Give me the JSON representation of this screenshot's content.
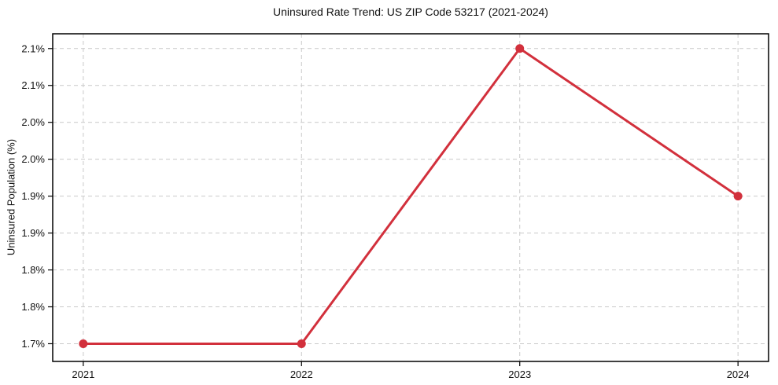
{
  "chart_data": {
    "type": "line",
    "title": "Uninsured Rate Trend: US ZIP Code 53217 (2021-2024)",
    "xlabel": "",
    "ylabel": "Uninsured Population (%)",
    "x": [
      2021,
      2022,
      2023,
      2024
    ],
    "values": [
      1.7,
      1.7,
      2.1,
      1.9
    ],
    "x_tick_labels": [
      "2021",
      "2022",
      "2023",
      "2024"
    ],
    "y_ticks": [
      {
        "value": 1.7,
        "label": "1.7%"
      },
      {
        "value": 1.75,
        "label": "1.8%"
      },
      {
        "value": 1.8,
        "label": "1.8%"
      },
      {
        "value": 1.85,
        "label": "1.9%"
      },
      {
        "value": 1.9,
        "label": "1.9%"
      },
      {
        "value": 1.95,
        "label": "2.0%"
      },
      {
        "value": 2.0,
        "label": "2.0%"
      },
      {
        "value": 2.05,
        "label": "2.1%"
      },
      {
        "value": 2.1,
        "label": "2.1%"
      }
    ],
    "xlim": [
      2020.86,
      2024.14
    ],
    "ylim": [
      1.676,
      2.12
    ],
    "grid": true,
    "grid_style": "dashed",
    "legend_position": "none",
    "marker": "circle",
    "line_width": 3,
    "colors": {
      "line": "#d2303c",
      "marker": "#d2303c",
      "grid": "#c9c9c9",
      "spine": "#000000",
      "text": "#111111",
      "background": "#ffffff"
    }
  }
}
